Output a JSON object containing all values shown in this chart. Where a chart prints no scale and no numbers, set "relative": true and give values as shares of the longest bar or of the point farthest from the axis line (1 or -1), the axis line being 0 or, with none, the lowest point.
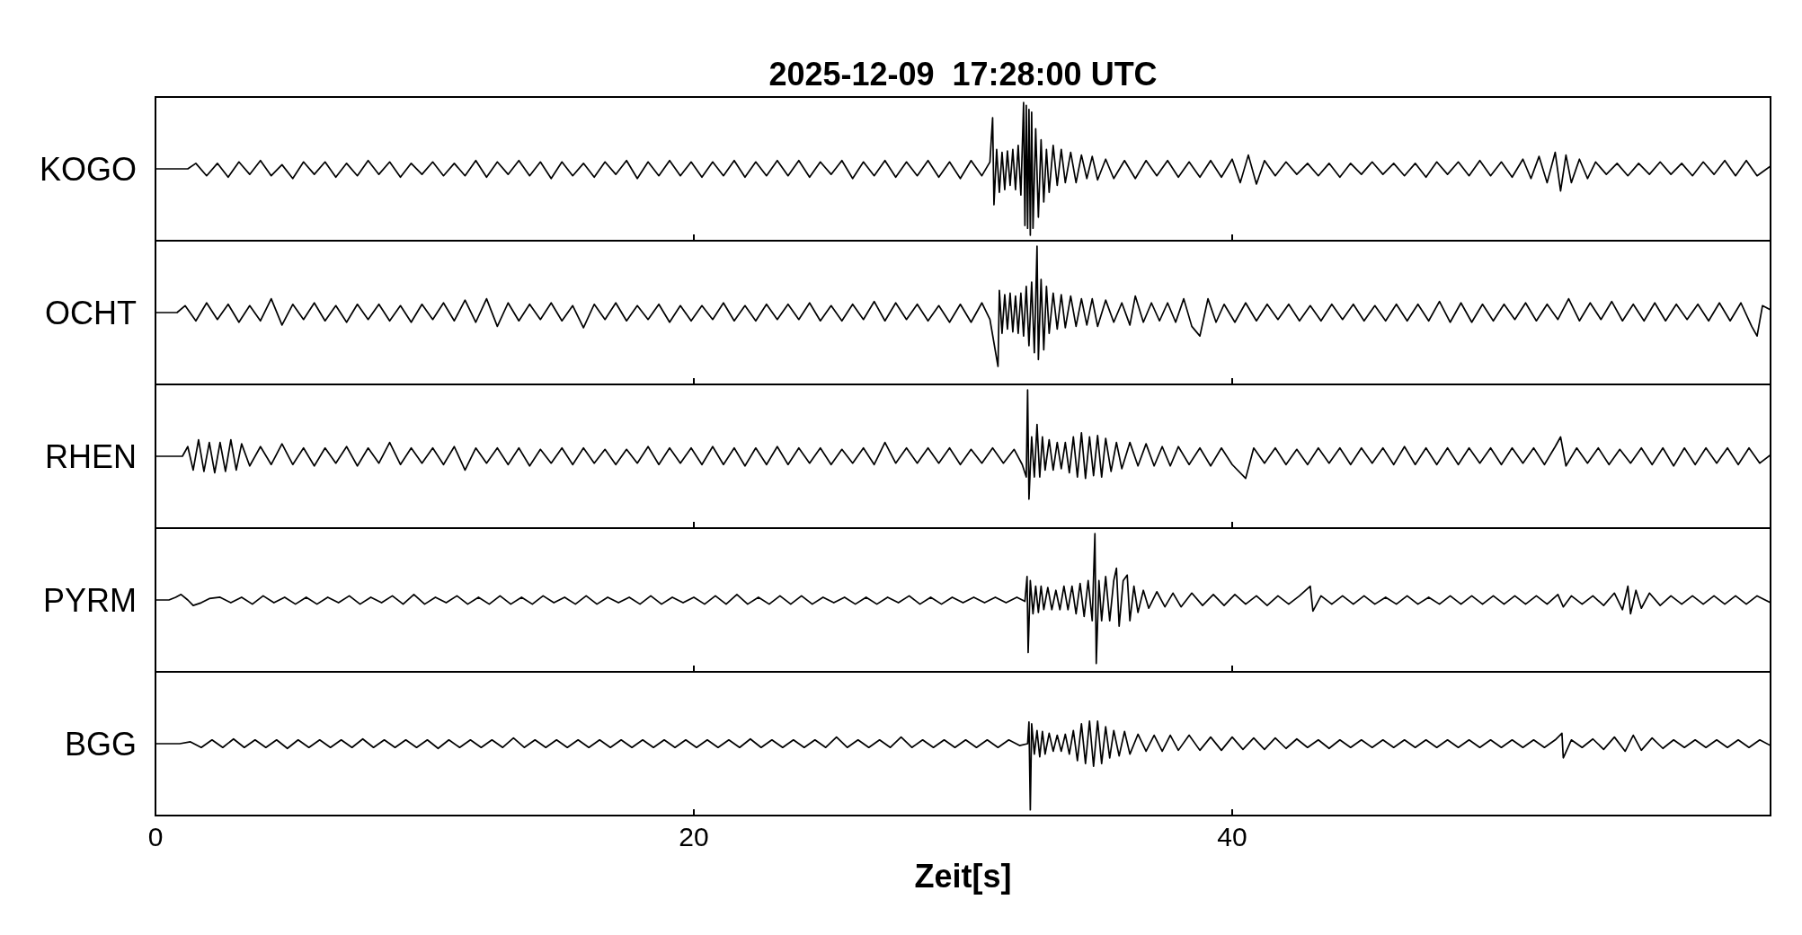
{
  "chart_data": [
    {
      "type": "line",
      "title": "2025-12-09  17:28:00 UTC",
      "ylabel": "KOGO",
      "relative": true,
      "xlim": [
        0,
        60
      ],
      "xticks": [
        0,
        20,
        40
      ],
      "tick_labels": false,
      "series": [
        {
          "color": "#000000",
          "x": [
            0,
            1.2,
            1.5,
            1.9,
            2.3,
            2.7,
            3.1,
            3.5,
            3.9,
            4.3,
            4.7,
            5.1,
            5.5,
            5.9,
            6.3,
            6.7,
            7.1,
            7.5,
            7.9,
            8.3,
            8.7,
            9.1,
            9.5,
            9.9,
            10.3,
            10.7,
            11.1,
            11.5,
            11.9,
            12.3,
            12.7,
            13.1,
            13.5,
            13.9,
            14.3,
            14.7,
            15.1,
            15.5,
            15.9,
            16.3,
            16.7,
            17.1,
            17.5,
            17.9,
            18.3,
            18.7,
            19.1,
            19.5,
            19.9,
            20.3,
            20.7,
            21.1,
            21.5,
            21.9,
            22.3,
            22.7,
            23.1,
            23.5,
            23.9,
            24.3,
            24.7,
            25.1,
            25.5,
            25.9,
            26.3,
            26.7,
            27.1,
            27.5,
            27.9,
            28.3,
            28.7,
            29.1,
            29.5,
            29.9,
            30.3,
            30.7,
            31.0,
            31.1,
            31.15,
            31.25,
            31.35,
            31.45,
            31.55,
            31.65,
            31.75,
            31.85,
            31.95,
            32.05,
            32.15,
            32.25,
            32.3,
            32.35,
            32.4,
            32.45,
            32.5,
            32.55,
            32.6,
            32.7,
            32.8,
            32.9,
            33.0,
            33.1,
            33.2,
            33.35,
            33.5,
            33.65,
            33.8,
            34.0,
            34.2,
            34.4,
            34.6,
            34.8,
            35.0,
            35.3,
            35.6,
            36.0,
            36.4,
            36.8,
            37.2,
            37.6,
            38.0,
            38.4,
            38.8,
            39.2,
            39.6,
            40.0,
            40.3,
            40.6,
            40.9,
            41.2,
            41.6,
            42.0,
            42.4,
            42.8,
            43.2,
            43.6,
            44.0,
            44.4,
            44.8,
            45.2,
            45.6,
            46.0,
            46.4,
            46.8,
            47.2,
            47.6,
            48.0,
            48.4,
            48.8,
            49.2,
            49.6,
            50.0,
            50.4,
            50.8,
            51.1,
            51.4,
            51.7,
            52.0,
            52.2,
            52.4,
            52.6,
            52.9,
            53.2,
            53.5,
            53.9,
            54.3,
            54.7,
            55.1,
            55.5,
            55.9,
            56.3,
            56.7,
            57.1,
            57.5,
            57.9,
            58.3,
            58.7,
            59.1,
            59.5,
            60
          ],
          "values": [
            0.52,
            0.52,
            0.56,
            0.47,
            0.56,
            0.46,
            0.57,
            0.48,
            0.58,
            0.47,
            0.55,
            0.45,
            0.57,
            0.48,
            0.57,
            0.46,
            0.56,
            0.47,
            0.58,
            0.48,
            0.57,
            0.46,
            0.56,
            0.48,
            0.57,
            0.47,
            0.56,
            0.47,
            0.58,
            0.46,
            0.57,
            0.48,
            0.58,
            0.47,
            0.57,
            0.45,
            0.57,
            0.47,
            0.56,
            0.46,
            0.57,
            0.48,
            0.58,
            0.45,
            0.57,
            0.47,
            0.58,
            0.47,
            0.57,
            0.46,
            0.57,
            0.47,
            0.58,
            0.46,
            0.57,
            0.47,
            0.58,
            0.47,
            0.58,
            0.46,
            0.57,
            0.48,
            0.58,
            0.45,
            0.57,
            0.47,
            0.58,
            0.46,
            0.57,
            0.47,
            0.58,
            0.46,
            0.57,
            0.45,
            0.58,
            0.47,
            0.57,
            0.89,
            0.26,
            0.66,
            0.35,
            0.64,
            0.37,
            0.65,
            0.4,
            0.66,
            0.37,
            0.69,
            0.33,
            1,
            0.11,
            0.98,
            0.09,
            0.95,
            0.04,
            0.93,
            0.09,
            0.81,
            0.17,
            0.73,
            0.28,
            0.66,
            0.35,
            0.69,
            0.4,
            0.66,
            0.42,
            0.64,
            0.42,
            0.62,
            0.45,
            0.61,
            0.44,
            0.59,
            0.45,
            0.58,
            0.45,
            0.58,
            0.47,
            0.58,
            0.46,
            0.57,
            0.46,
            0.58,
            0.46,
            0.59,
            0.42,
            0.62,
            0.41,
            0.58,
            0.47,
            0.57,
            0.48,
            0.56,
            0.47,
            0.56,
            0.46,
            0.56,
            0.48,
            0.57,
            0.48,
            0.56,
            0.47,
            0.56,
            0.46,
            0.57,
            0.48,
            0.57,
            0.47,
            0.58,
            0.47,
            0.57,
            0.46,
            0.59,
            0.45,
            0.61,
            0.42,
            0.64,
            0.36,
            0.62,
            0.42,
            0.59,
            0.45,
            0.57,
            0.48,
            0.56,
            0.47,
            0.56,
            0.48,
            0.57,
            0.48,
            0.56,
            0.47,
            0.57,
            0.48,
            0.58,
            0.47,
            0.58,
            0.47,
            0.54
          ]
        }
      ]
    },
    {
      "type": "line",
      "ylabel": "OCHT",
      "relative": true,
      "xlim": [
        0,
        60
      ],
      "xticks": [
        0,
        20,
        40
      ],
      "tick_labels": false,
      "series": [
        {
          "color": "#000000",
          "x": [
            0,
            0.8,
            1.1,
            1.5,
            1.9,
            2.3,
            2.7,
            3.1,
            3.5,
            3.9,
            4.3,
            4.7,
            5.1,
            5.5,
            5.9,
            6.3,
            6.7,
            7.1,
            7.5,
            7.9,
            8.3,
            8.7,
            9.1,
            9.5,
            9.9,
            10.3,
            10.7,
            11.1,
            11.5,
            11.9,
            12.3,
            12.7,
            13.1,
            13.5,
            13.9,
            14.3,
            14.7,
            15.1,
            15.5,
            15.9,
            16.3,
            16.7,
            17.1,
            17.5,
            17.9,
            18.3,
            18.7,
            19.1,
            19.5,
            19.9,
            20.3,
            20.7,
            21.1,
            21.5,
            21.9,
            22.3,
            22.7,
            23.1,
            23.5,
            23.9,
            24.3,
            24.7,
            25.1,
            25.5,
            25.9,
            26.3,
            26.7,
            27.1,
            27.5,
            27.9,
            28.3,
            28.7,
            29.1,
            29.5,
            29.9,
            30.3,
            30.7,
            31.0,
            31.3,
            31.35,
            31.45,
            31.55,
            31.65,
            31.75,
            31.85,
            31.95,
            32.05,
            32.15,
            32.25,
            32.35,
            32.45,
            32.55,
            32.65,
            32.75,
            32.8,
            32.9,
            33.0,
            33.1,
            33.2,
            33.35,
            33.5,
            33.65,
            33.8,
            34.0,
            34.2,
            34.4,
            34.6,
            34.8,
            35.0,
            35.3,
            35.6,
            35.9,
            36.2,
            36.4,
            36.7,
            37.0,
            37.3,
            37.6,
            37.9,
            38.2,
            38.5,
            38.8,
            39.1,
            39.4,
            39.7,
            40.1,
            40.5,
            40.9,
            41.3,
            41.7,
            42.1,
            42.5,
            42.9,
            43.3,
            43.7,
            44.1,
            44.5,
            44.9,
            45.3,
            45.7,
            46.1,
            46.5,
            46.9,
            47.3,
            47.7,
            48.1,
            48.5,
            48.9,
            49.3,
            49.7,
            50.1,
            50.5,
            50.9,
            51.3,
            51.7,
            52.1,
            52.5,
            52.9,
            53.3,
            53.7,
            54.1,
            54.5,
            54.9,
            55.3,
            55.7,
            56.1,
            56.5,
            56.9,
            57.3,
            57.7,
            58.1,
            58.5,
            58.9,
            59.3,
            59.5,
            59.7,
            60
          ],
          "values": [
            0.52,
            0.52,
            0.57,
            0.46,
            0.59,
            0.47,
            0.58,
            0.45,
            0.57,
            0.46,
            0.62,
            0.43,
            0.58,
            0.47,
            0.59,
            0.46,
            0.57,
            0.45,
            0.58,
            0.47,
            0.58,
            0.46,
            0.57,
            0.45,
            0.58,
            0.47,
            0.59,
            0.46,
            0.61,
            0.45,
            0.62,
            0.42,
            0.59,
            0.46,
            0.58,
            0.47,
            0.59,
            0.46,
            0.57,
            0.41,
            0.58,
            0.47,
            0.59,
            0.46,
            0.57,
            0.47,
            0.58,
            0.45,
            0.57,
            0.46,
            0.57,
            0.47,
            0.59,
            0.46,
            0.57,
            0.46,
            0.58,
            0.47,
            0.58,
            0.47,
            0.59,
            0.46,
            0.57,
            0.46,
            0.58,
            0.47,
            0.6,
            0.46,
            0.59,
            0.47,
            0.58,
            0.46,
            0.57,
            0.45,
            0.58,
            0.45,
            0.59,
            0.47,
            0.13,
            0.68,
            0.37,
            0.65,
            0.4,
            0.66,
            0.38,
            0.64,
            0.37,
            0.66,
            0.35,
            0.71,
            0.28,
            0.74,
            0.23,
            1,
            0.18,
            0.76,
            0.25,
            0.71,
            0.37,
            0.66,
            0.4,
            0.65,
            0.41,
            0.64,
            0.42,
            0.62,
            0.43,
            0.62,
            0.42,
            0.61,
            0.45,
            0.59,
            0.43,
            0.64,
            0.45,
            0.59,
            0.46,
            0.59,
            0.45,
            0.62,
            0.42,
            0.35,
            0.62,
            0.45,
            0.58,
            0.45,
            0.59,
            0.46,
            0.58,
            0.47,
            0.58,
            0.46,
            0.57,
            0.46,
            0.58,
            0.47,
            0.58,
            0.46,
            0.57,
            0.46,
            0.58,
            0.46,
            0.58,
            0.46,
            0.6,
            0.45,
            0.59,
            0.45,
            0.58,
            0.46,
            0.58,
            0.47,
            0.59,
            0.46,
            0.58,
            0.47,
            0.62,
            0.46,
            0.59,
            0.47,
            0.6,
            0.46,
            0.58,
            0.46,
            0.59,
            0.46,
            0.58,
            0.47,
            0.58,
            0.46,
            0.59,
            0.46,
            0.59,
            0.42,
            0.35,
            0.57,
            0.54
          ]
        }
      ]
    },
    {
      "type": "line",
      "ylabel": "RHEN",
      "relative": true,
      "xlim": [
        0,
        60
      ],
      "xticks": [
        0,
        20,
        40
      ],
      "tick_labels": false,
      "series": [
        {
          "color": "#000000",
          "x": [
            0,
            1.0,
            1.2,
            1.4,
            1.6,
            1.8,
            2.0,
            2.2,
            2.4,
            2.6,
            2.8,
            3.0,
            3.2,
            3.5,
            3.9,
            4.3,
            4.7,
            5.1,
            5.5,
            5.9,
            6.3,
            6.7,
            7.1,
            7.5,
            7.9,
            8.3,
            8.7,
            9.1,
            9.5,
            9.9,
            10.3,
            10.7,
            11.1,
            11.5,
            11.9,
            12.3,
            12.7,
            13.1,
            13.5,
            13.9,
            14.3,
            14.7,
            15.1,
            15.5,
            15.9,
            16.3,
            16.7,
            17.1,
            17.5,
            17.9,
            18.3,
            18.7,
            19.1,
            19.5,
            19.9,
            20.3,
            20.7,
            21.1,
            21.5,
            21.9,
            22.3,
            22.7,
            23.1,
            23.5,
            23.9,
            24.3,
            24.7,
            25.1,
            25.5,
            25.9,
            26.3,
            26.7,
            27.1,
            27.5,
            27.9,
            28.3,
            28.7,
            29.1,
            29.5,
            29.9,
            30.3,
            30.7,
            31.1,
            31.5,
            31.9,
            32.2,
            32.35,
            32.4,
            32.45,
            32.55,
            32.65,
            32.75,
            32.85,
            32.95,
            33.05,
            33.2,
            33.35,
            33.5,
            33.65,
            33.8,
            33.95,
            34.1,
            34.25,
            34.4,
            34.55,
            34.7,
            34.85,
            35.0,
            35.15,
            35.3,
            35.5,
            35.7,
            35.9,
            36.2,
            36.5,
            36.8,
            37.1,
            37.4,
            37.7,
            38.0,
            38.4,
            38.8,
            39.2,
            39.6,
            40.0,
            40.5,
            40.8,
            41.2,
            41.6,
            42.0,
            42.4,
            42.8,
            43.2,
            43.6,
            44.0,
            44.4,
            44.8,
            45.2,
            45.6,
            46.0,
            46.4,
            46.8,
            47.2,
            47.6,
            48.0,
            48.4,
            48.8,
            49.2,
            49.6,
            50.0,
            50.4,
            50.8,
            51.2,
            51.6,
            52.0,
            52.2,
            52.4,
            52.8,
            53.2,
            53.6,
            54.0,
            54.4,
            54.8,
            55.2,
            55.6,
            56.0,
            56.4,
            56.8,
            57.2,
            57.6,
            58.0,
            58.4,
            58.8,
            59.2,
            59.6,
            60
          ],
          "values": [
            0.52,
            0.52,
            0.59,
            0.42,
            0.64,
            0.41,
            0.62,
            0.4,
            0.62,
            0.41,
            0.64,
            0.42,
            0.61,
            0.45,
            0.59,
            0.46,
            0.61,
            0.46,
            0.58,
            0.45,
            0.58,
            0.47,
            0.59,
            0.45,
            0.58,
            0.47,
            0.62,
            0.46,
            0.58,
            0.47,
            0.58,
            0.46,
            0.59,
            0.42,
            0.58,
            0.47,
            0.58,
            0.46,
            0.58,
            0.45,
            0.57,
            0.47,
            0.58,
            0.46,
            0.58,
            0.47,
            0.57,
            0.46,
            0.57,
            0.47,
            0.59,
            0.46,
            0.58,
            0.47,
            0.58,
            0.46,
            0.59,
            0.46,
            0.58,
            0.45,
            0.58,
            0.46,
            0.59,
            0.46,
            0.58,
            0.47,
            0.58,
            0.46,
            0.57,
            0.47,
            0.58,
            0.46,
            0.62,
            0.47,
            0.58,
            0.47,
            0.58,
            0.47,
            0.58,
            0.46,
            0.57,
            0.47,
            0.58,
            0.47,
            0.57,
            0.46,
            0.37,
            1,
            0.21,
            0.66,
            0.37,
            0.75,
            0.37,
            0.66,
            0.42,
            0.64,
            0.42,
            0.62,
            0.43,
            0.62,
            0.4,
            0.66,
            0.37,
            0.69,
            0.36,
            0.66,
            0.38,
            0.67,
            0.37,
            0.65,
            0.41,
            0.62,
            0.43,
            0.62,
            0.45,
            0.61,
            0.45,
            0.59,
            0.45,
            0.59,
            0.46,
            0.58,
            0.45,
            0.58,
            0.46,
            0.36,
            0.58,
            0.47,
            0.58,
            0.46,
            0.57,
            0.46,
            0.58,
            0.47,
            0.58,
            0.46,
            0.58,
            0.47,
            0.58,
            0.46,
            0.59,
            0.46,
            0.58,
            0.46,
            0.58,
            0.46,
            0.58,
            0.47,
            0.58,
            0.46,
            0.58,
            0.47,
            0.58,
            0.46,
            0.59,
            0.66,
            0.45,
            0.58,
            0.47,
            0.58,
            0.46,
            0.57,
            0.47,
            0.58,
            0.46,
            0.58,
            0.45,
            0.58,
            0.46,
            0.58,
            0.47,
            0.58,
            0.46,
            0.58,
            0.47,
            0.53
          ]
        }
      ]
    },
    {
      "type": "line",
      "ylabel": "PYRM",
      "relative": true,
      "xlim": [
        0,
        60
      ],
      "xticks": [
        0,
        20,
        40
      ],
      "tick_labels": false,
      "series": [
        {
          "color": "#000000",
          "x": [
            0,
            0.5,
            0.75,
            0.95,
            1.2,
            1.4,
            1.7,
            2.0,
            2.4,
            2.8,
            3.2,
            3.6,
            4.0,
            4.4,
            4.8,
            5.2,
            5.6,
            6.0,
            6.4,
            6.8,
            7.2,
            7.6,
            8.0,
            8.4,
            8.8,
            9.2,
            9.6,
            10.0,
            10.4,
            10.8,
            11.2,
            11.6,
            12.0,
            12.4,
            12.8,
            13.2,
            13.6,
            14.0,
            14.4,
            14.8,
            15.2,
            15.6,
            16.0,
            16.4,
            16.8,
            17.2,
            17.6,
            18.0,
            18.4,
            18.8,
            19.2,
            19.6,
            20.0,
            20.4,
            20.8,
            21.2,
            21.6,
            22.0,
            22.4,
            22.8,
            23.2,
            23.6,
            24.0,
            24.4,
            24.8,
            25.2,
            25.6,
            26.0,
            26.4,
            26.8,
            27.2,
            27.6,
            28.0,
            28.4,
            28.8,
            29.2,
            29.6,
            30.0,
            30.4,
            30.8,
            31.2,
            31.6,
            32.0,
            32.3,
            32.38,
            32.42,
            32.5,
            32.6,
            32.7,
            32.8,
            32.9,
            33.0,
            33.15,
            33.3,
            33.45,
            33.6,
            33.75,
            33.9,
            34.05,
            34.2,
            34.35,
            34.5,
            34.65,
            34.8,
            34.9,
            34.95,
            35.05,
            35.15,
            35.3,
            35.45,
            35.6,
            35.7,
            35.8,
            35.95,
            36.1,
            36.2,
            36.35,
            36.5,
            36.7,
            36.9,
            37.2,
            37.5,
            37.8,
            38.1,
            38.5,
            38.9,
            39.3,
            39.7,
            40.1,
            40.5,
            40.9,
            41.3,
            41.7,
            42.1,
            42.5,
            42.9,
            43.0,
            43.3,
            43.7,
            44.1,
            44.5,
            44.9,
            45.3,
            45.7,
            46.1,
            46.5,
            46.9,
            47.3,
            47.7,
            48.1,
            48.5,
            48.9,
            49.3,
            49.7,
            50.1,
            50.5,
            50.9,
            51.3,
            51.7,
            52.1,
            52.3,
            52.6,
            53.0,
            53.4,
            53.8,
            54.2,
            54.5,
            54.7,
            54.8,
            55.0,
            55.2,
            55.5,
            55.9,
            56.3,
            56.7,
            57.1,
            57.5,
            57.9,
            58.3,
            58.7,
            59.1,
            59.5,
            60
          ],
          "values": [
            0.52,
            0.52,
            0.54,
            0.56,
            0.52,
            0.48,
            0.5,
            0.53,
            0.54,
            0.5,
            0.54,
            0.49,
            0.55,
            0.5,
            0.54,
            0.49,
            0.54,
            0.49,
            0.54,
            0.5,
            0.55,
            0.49,
            0.54,
            0.5,
            0.55,
            0.49,
            0.56,
            0.49,
            0.54,
            0.5,
            0.55,
            0.49,
            0.54,
            0.49,
            0.55,
            0.49,
            0.54,
            0.49,
            0.55,
            0.5,
            0.54,
            0.49,
            0.55,
            0.49,
            0.54,
            0.5,
            0.54,
            0.49,
            0.55,
            0.49,
            0.54,
            0.5,
            0.54,
            0.49,
            0.55,
            0.49,
            0.56,
            0.49,
            0.54,
            0.49,
            0.55,
            0.49,
            0.55,
            0.49,
            0.54,
            0.5,
            0.54,
            0.49,
            0.54,
            0.49,
            0.54,
            0.5,
            0.55,
            0.49,
            0.54,
            0.49,
            0.54,
            0.5,
            0.54,
            0.5,
            0.54,
            0.5,
            0.54,
            0.51,
            0.69,
            0.14,
            0.66,
            0.42,
            0.62,
            0.43,
            0.62,
            0.45,
            0.61,
            0.45,
            0.59,
            0.45,
            0.62,
            0.45,
            0.62,
            0.42,
            0.64,
            0.4,
            0.66,
            0.37,
            1,
            0.06,
            0.66,
            0.37,
            0.69,
            0.37,
            0.66,
            0.75,
            0.33,
            0.66,
            0.7,
            0.37,
            0.62,
            0.43,
            0.59,
            0.46,
            0.58,
            0.47,
            0.57,
            0.47,
            0.57,
            0.48,
            0.56,
            0.48,
            0.56,
            0.49,
            0.55,
            0.48,
            0.55,
            0.49,
            0.55,
            0.62,
            0.44,
            0.55,
            0.49,
            0.55,
            0.49,
            0.55,
            0.49,
            0.54,
            0.49,
            0.55,
            0.49,
            0.54,
            0.49,
            0.55,
            0.49,
            0.55,
            0.49,
            0.55,
            0.49,
            0.55,
            0.49,
            0.55,
            0.49,
            0.56,
            0.47,
            0.55,
            0.49,
            0.55,
            0.48,
            0.57,
            0.45,
            0.62,
            0.42,
            0.59,
            0.46,
            0.57,
            0.48,
            0.55,
            0.49,
            0.55,
            0.49,
            0.55,
            0.49,
            0.55,
            0.49,
            0.55,
            0.5
          ]
        }
      ]
    },
    {
      "type": "line",
      "ylabel": "BGG",
      "xlabel": "Zeit[s]",
      "relative": true,
      "xlim": [
        0,
        60
      ],
      "xticks": [
        0,
        20,
        40
      ],
      "series": [
        {
          "color": "#000000",
          "x": [
            0,
            0.9,
            1.3,
            1.7,
            2.1,
            2.5,
            2.9,
            3.3,
            3.7,
            4.1,
            4.5,
            4.9,
            5.3,
            5.7,
            6.1,
            6.5,
            6.9,
            7.3,
            7.7,
            8.1,
            8.5,
            8.9,
            9.3,
            9.7,
            10.1,
            10.5,
            10.9,
            11.3,
            11.7,
            12.1,
            12.5,
            12.9,
            13.3,
            13.7,
            14.1,
            14.5,
            14.9,
            15.3,
            15.7,
            16.1,
            16.5,
            16.9,
            17.3,
            17.7,
            18.1,
            18.5,
            18.9,
            19.3,
            19.7,
            20.1,
            20.5,
            20.9,
            21.3,
            21.7,
            22.1,
            22.5,
            22.9,
            23.3,
            23.7,
            24.1,
            24.5,
            24.9,
            25.3,
            25.7,
            26.1,
            26.5,
            26.9,
            27.3,
            27.7,
            28.1,
            28.5,
            28.9,
            29.3,
            29.7,
            30.1,
            30.5,
            30.9,
            31.3,
            31.7,
            32.1,
            32.4,
            32.45,
            32.5,
            32.55,
            32.65,
            32.75,
            32.85,
            32.95,
            33.05,
            33.2,
            33.35,
            33.5,
            33.65,
            33.8,
            33.95,
            34.1,
            34.25,
            34.4,
            34.55,
            34.7,
            34.85,
            35.0,
            35.15,
            35.3,
            35.45,
            35.6,
            35.8,
            36.0,
            36.2,
            36.5,
            36.8,
            37.1,
            37.4,
            37.7,
            38.0,
            38.4,
            38.8,
            39.2,
            39.6,
            40.0,
            40.4,
            40.8,
            41.2,
            41.6,
            42.0,
            42.4,
            42.8,
            43.2,
            43.6,
            44.0,
            44.4,
            44.8,
            45.2,
            45.6,
            46.0,
            46.4,
            46.8,
            47.2,
            47.6,
            48.0,
            48.4,
            48.8,
            49.2,
            49.6,
            50.0,
            50.4,
            50.8,
            51.2,
            51.6,
            52.0,
            52.25,
            52.3,
            52.6,
            53.0,
            53.4,
            53.8,
            54.2,
            54.6,
            54.9,
            55.2,
            55.6,
            56.0,
            56.4,
            56.8,
            57.2,
            57.6,
            58.0,
            58.4,
            58.8,
            59.2,
            59.6,
            60
          ],
          "values": [
            0.76,
            0.76,
            0.78,
            0.72,
            0.8,
            0.72,
            0.81,
            0.72,
            0.8,
            0.72,
            0.8,
            0.71,
            0.8,
            0.72,
            0.8,
            0.72,
            0.8,
            0.72,
            0.81,
            0.72,
            0.8,
            0.72,
            0.8,
            0.72,
            0.8,
            0.71,
            0.8,
            0.72,
            0.8,
            0.72,
            0.8,
            0.72,
            0.82,
            0.72,
            0.8,
            0.72,
            0.8,
            0.72,
            0.8,
            0.72,
            0.8,
            0.72,
            0.8,
            0.72,
            0.8,
            0.72,
            0.8,
            0.72,
            0.8,
            0.72,
            0.8,
            0.72,
            0.8,
            0.72,
            0.81,
            0.72,
            0.8,
            0.72,
            0.8,
            0.72,
            0.8,
            0.72,
            0.83,
            0.72,
            0.8,
            0.72,
            0.8,
            0.72,
            0.83,
            0.72,
            0.8,
            0.72,
            0.8,
            0.72,
            0.8,
            0.72,
            0.8,
            0.72,
            0.8,
            0.74,
            0.76,
            0.99,
            0.06,
            0.97,
            0.65,
            0.9,
            0.62,
            0.89,
            0.65,
            0.87,
            0.68,
            0.85,
            0.68,
            0.86,
            0.65,
            0.9,
            0.58,
            0.97,
            0.55,
            1,
            0.52,
            1,
            0.55,
            0.94,
            0.61,
            0.9,
            0.63,
            0.89,
            0.65,
            0.86,
            0.68,
            0.85,
            0.68,
            0.85,
            0.69,
            0.85,
            0.69,
            0.83,
            0.69,
            0.83,
            0.7,
            0.82,
            0.7,
            0.82,
            0.71,
            0.81,
            0.72,
            0.8,
            0.71,
            0.8,
            0.72,
            0.8,
            0.72,
            0.8,
            0.72,
            0.8,
            0.72,
            0.8,
            0.72,
            0.8,
            0.72,
            0.8,
            0.72,
            0.8,
            0.72,
            0.8,
            0.72,
            0.8,
            0.72,
            0.8,
            0.87,
            0.61,
            0.8,
            0.72,
            0.81,
            0.7,
            0.83,
            0.68,
            0.85,
            0.69,
            0.82,
            0.71,
            0.8,
            0.72,
            0.8,
            0.72,
            0.8,
            0.72,
            0.8,
            0.72,
            0.8,
            0.74
          ]
        }
      ]
    }
  ]
}
